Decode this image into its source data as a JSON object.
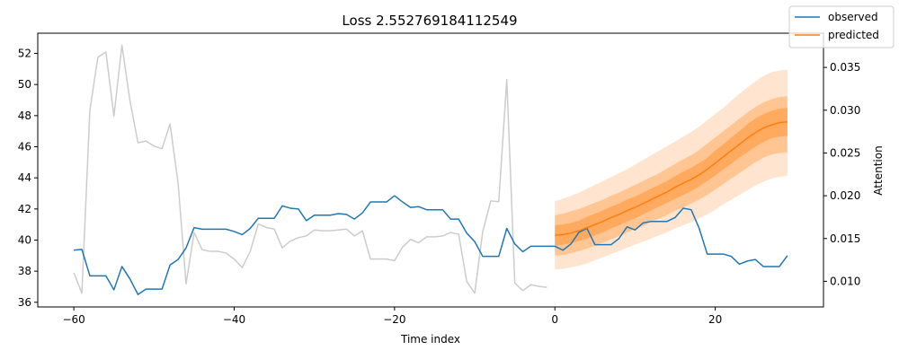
{
  "chart_data": {
    "type": "line",
    "title": "Loss 2.552769184112549",
    "xlabel": "Time index",
    "ylabel": "",
    "y2label": "Attention",
    "xlim": [
      -64.5,
      33.5
    ],
    "ylim": [
      35.7,
      53.3
    ],
    "y2lim": [
      0.007,
      0.039
    ],
    "xticks": [
      -60,
      -40,
      -20,
      0,
      20
    ],
    "xtick_labels": [
      "−60",
      "−40",
      "−20",
      "0",
      "20"
    ],
    "yticks": [
      36,
      38,
      40,
      42,
      44,
      46,
      48,
      50,
      52
    ],
    "y2ticks": [
      0.01,
      0.015,
      0.02,
      0.025,
      0.03,
      0.035
    ],
    "y2tick_labels": [
      "0.010",
      "0.015",
      "0.020",
      "0.025",
      "0.030",
      "0.035"
    ],
    "legend": {
      "position": "top-right",
      "entries": [
        {
          "label": "observed",
          "color": "#1f77b4"
        },
        {
          "label": "predicted",
          "color": "#ff7f0e"
        }
      ]
    },
    "series": [
      {
        "name": "observed",
        "color": "#1f77b4",
        "x": [
          -60,
          -59,
          -58,
          -57,
          -56,
          -55,
          -54,
          -53,
          -52,
          -51,
          -50,
          -49,
          -48,
          -47,
          -46,
          -45,
          -44,
          -43,
          -42,
          -41,
          -40,
          -39,
          -38,
          -37,
          -36,
          -35,
          -34,
          -33,
          -32,
          -31,
          -30,
          -29,
          -28,
          -27,
          -26,
          -25,
          -24,
          -23,
          -22,
          -21,
          -20,
          -19,
          -18,
          -17,
          -16,
          -15,
          -14,
          -13,
          -12,
          -11,
          -10,
          -9,
          -8,
          -7,
          -6,
          -5,
          -4,
          -3,
          -2,
          -1,
          0,
          1,
          2,
          3,
          4,
          5,
          6,
          7,
          8,
          9,
          10,
          11,
          12,
          13,
          14,
          15,
          16,
          17,
          18,
          19,
          20,
          21,
          22,
          23,
          24,
          25,
          26,
          27,
          28,
          29
        ],
        "y": [
          39.35,
          39.4,
          37.7,
          37.7,
          37.7,
          36.8,
          38.3,
          37.5,
          36.5,
          36.85,
          36.85,
          36.85,
          38.4,
          38.75,
          39.5,
          40.8,
          40.7,
          40.7,
          40.7,
          40.7,
          40.55,
          40.35,
          40.75,
          41.4,
          41.4,
          41.4,
          42.2,
          42.05,
          42.0,
          41.25,
          41.6,
          41.6,
          41.6,
          41.7,
          41.65,
          41.35,
          41.75,
          42.45,
          42.45,
          42.45,
          42.85,
          42.45,
          42.1,
          42.15,
          41.95,
          41.95,
          41.95,
          41.35,
          41.35,
          40.45,
          39.9,
          38.95,
          38.95,
          38.95,
          40.75,
          39.75,
          39.25,
          39.6,
          39.6,
          39.6,
          39.6,
          39.35,
          39.75,
          40.5,
          40.75,
          39.7,
          39.7,
          39.7,
          40.1,
          40.85,
          40.65,
          41.1,
          41.2,
          41.2,
          41.2,
          41.45,
          42.05,
          41.95,
          40.75,
          39.1,
          39.1,
          39.1,
          38.95,
          38.45,
          38.65,
          38.75,
          38.3,
          38.3,
          38.3,
          39.0
        ]
      },
      {
        "name": "predicted",
        "color": "#ff7f0e",
        "x": [
          0,
          1,
          2,
          3,
          4,
          5,
          6,
          7,
          8,
          9,
          10,
          11,
          12,
          13,
          14,
          15,
          16,
          17,
          18,
          19,
          20,
          21,
          22,
          23,
          24,
          25,
          26,
          27,
          28,
          29
        ],
        "y": [
          40.3,
          40.35,
          40.45,
          40.6,
          40.8,
          41.0,
          41.2,
          41.45,
          41.65,
          41.9,
          42.1,
          42.35,
          42.6,
          42.85,
          43.1,
          43.4,
          43.65,
          43.9,
          44.2,
          44.55,
          44.95,
          45.35,
          45.75,
          46.15,
          46.55,
          46.9,
          47.2,
          47.4,
          47.55,
          47.6
        ],
        "bands": [
          {
            "lower": [
              38.1,
              38.15,
              38.25,
              38.35,
              38.5,
              38.7,
              38.9,
              39.1,
              39.3,
              39.5,
              39.7,
              39.9,
              40.1,
              40.3,
              40.5,
              40.75,
              40.95,
              41.15,
              41.4,
              41.65,
              41.95,
              42.3,
              42.6,
              42.9,
              43.2,
              43.5,
              43.75,
              43.95,
              44.05,
              44.15
            ],
            "upper": [
              42.5,
              42.65,
              42.85,
              43.05,
              43.3,
              43.55,
              43.8,
              44.05,
              44.3,
              44.55,
              44.85,
              45.15,
              45.45,
              45.75,
              46.05,
              46.35,
              46.65,
              46.95,
              47.3,
              47.7,
              48.1,
              48.5,
              48.95,
              49.4,
              49.8,
              50.2,
              50.55,
              50.8,
              50.9,
              50.95
            ],
            "opacity": 0.2
          },
          {
            "lower": [
              39.0,
              39.05,
              39.15,
              39.3,
              39.45,
              39.65,
              39.85,
              40.05,
              40.25,
              40.5,
              40.7,
              40.9,
              41.15,
              41.4,
              41.6,
              41.9,
              42.1,
              42.35,
              42.6,
              42.9,
              43.25,
              43.6,
              43.95,
              44.3,
              44.65,
              45.0,
              45.3,
              45.5,
              45.6,
              45.65
            ],
            "upper": [
              41.6,
              41.7,
              41.85,
              42.0,
              42.2,
              42.4,
              42.6,
              42.85,
              43.05,
              43.3,
              43.55,
              43.8,
              44.05,
              44.3,
              44.6,
              44.9,
              45.2,
              45.45,
              45.8,
              46.2,
              46.6,
              47.0,
              47.4,
              47.8,
              48.2,
              48.55,
              48.85,
              49.05,
              49.2,
              49.25
            ],
            "opacity": 0.3
          },
          {
            "lower": [
              39.65,
              39.7,
              39.8,
              39.95,
              40.1,
              40.3,
              40.5,
              40.75,
              40.95,
              41.2,
              41.4,
              41.65,
              41.9,
              42.15,
              42.4,
              42.65,
              42.9,
              43.15,
              43.45,
              43.8,
              44.15,
              44.55,
              44.9,
              45.3,
              45.65,
              46.0,
              46.3,
              46.55,
              46.65,
              46.7
            ],
            "upper": [
              40.95,
              41.0,
              41.1,
              41.25,
              41.5,
              41.7,
              41.9,
              42.15,
              42.35,
              42.6,
              42.8,
              43.05,
              43.3,
              43.55,
              43.8,
              44.1,
              44.4,
              44.65,
              44.95,
              45.3,
              45.75,
              46.15,
              46.6,
              47.0,
              47.45,
              47.8,
              48.1,
              48.3,
              48.45,
              48.5
            ],
            "opacity": 0.4
          }
        ]
      },
      {
        "name": "",
        "axis": "right",
        "color": "#cccccc",
        "x": [
          -60,
          -59,
          -58,
          -57,
          -56,
          -55,
          -54,
          -53,
          -52,
          -51,
          -50,
          -49,
          -48,
          -47,
          -46,
          -45,
          -44,
          -43,
          -42,
          -41,
          -40,
          -39,
          -38,
          -37,
          -36,
          -35,
          -34,
          -33,
          -32,
          -31,
          -30,
          -29,
          -28,
          -27,
          -26,
          -25,
          -24,
          -23,
          -22,
          -21,
          -20,
          -19,
          -18,
          -17,
          -16,
          -15,
          -14,
          -13,
          -12,
          -11,
          -10,
          -9,
          -8,
          -7,
          -6,
          -5,
          -4,
          -3,
          -2,
          -1
        ],
        "y": [
          0.011,
          0.0086,
          0.03,
          0.0362,
          0.0368,
          0.0293,
          0.0376,
          0.0311,
          0.0262,
          0.0264,
          0.0258,
          0.0255,
          0.0284,
          0.0215,
          0.0097,
          0.0157,
          0.0137,
          0.0135,
          0.0135,
          0.0133,
          0.0126,
          0.0116,
          0.0135,
          0.0167,
          0.0163,
          0.0161,
          0.0139,
          0.0147,
          0.0151,
          0.0153,
          0.016,
          0.0159,
          0.0159,
          0.016,
          0.0161,
          0.0153,
          0.0159,
          0.0126,
          0.0126,
          0.0126,
          0.0124,
          0.014,
          0.0149,
          0.0145,
          0.0152,
          0.0152,
          0.0153,
          0.0157,
          0.0155,
          0.01,
          0.0086,
          0.0158,
          0.0194,
          0.0193,
          0.0336,
          0.0098,
          0.0089,
          0.0096,
          0.0094,
          0.0093
        ]
      }
    ]
  }
}
